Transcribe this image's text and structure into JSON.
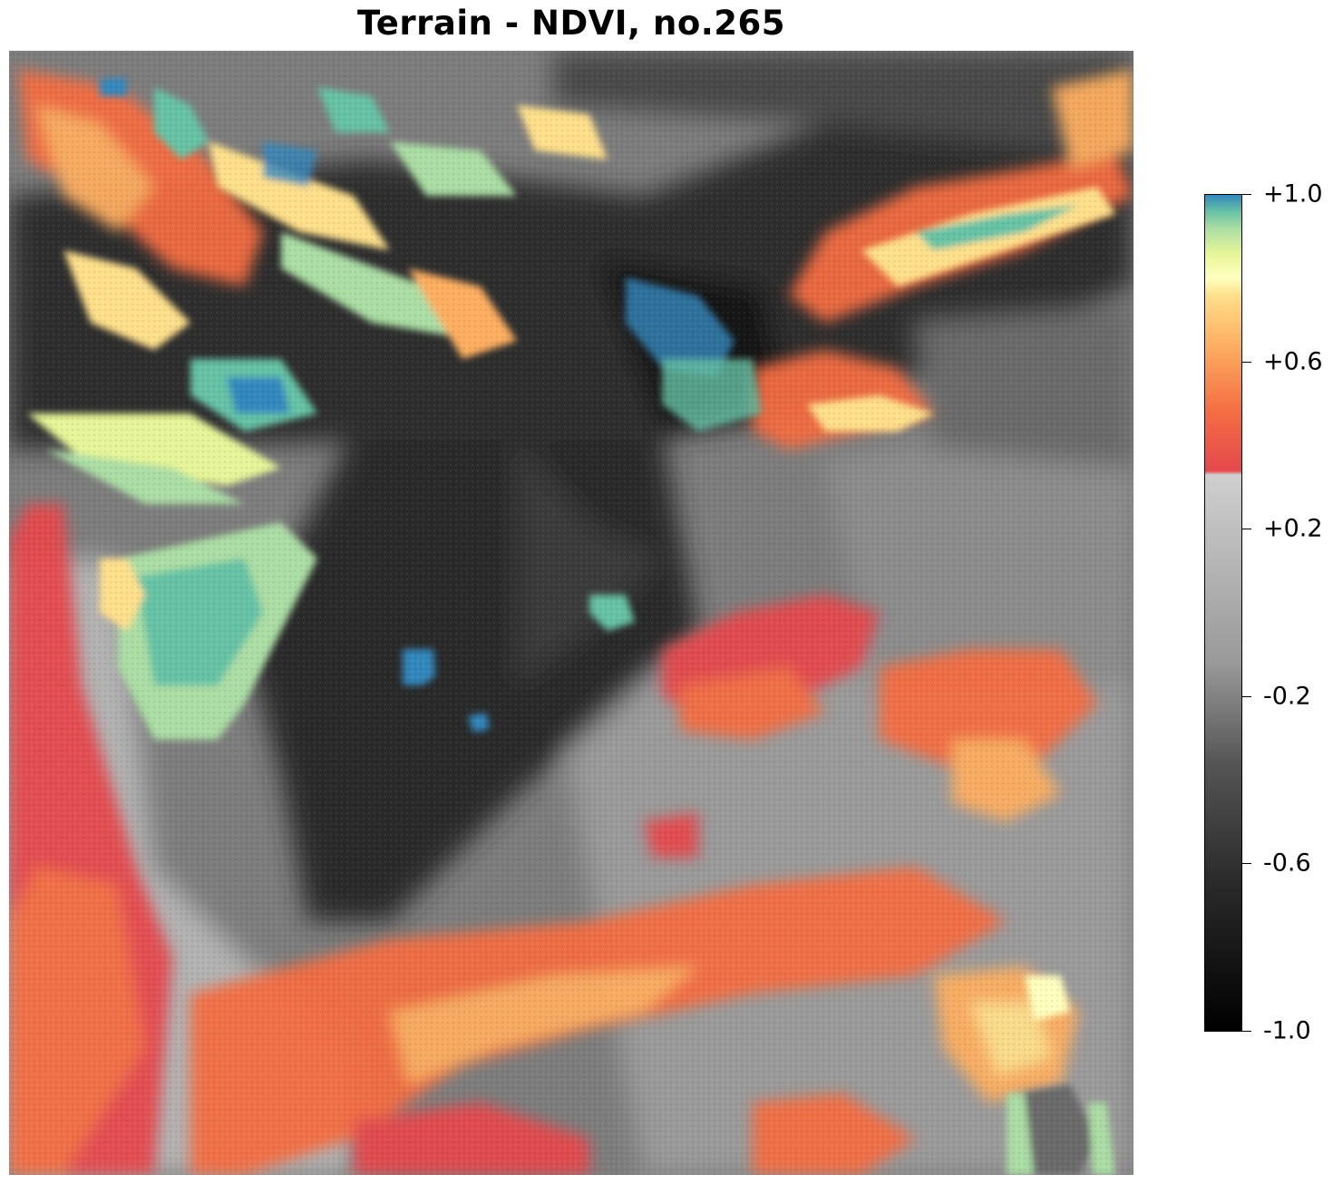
{
  "title": "Terrain - NDVI, no.265",
  "colorbar": {
    "min": -1.0,
    "max": 1.0,
    "colormap": "gray below -0.1, Spectral above",
    "ticks": [
      {
        "value": 1.0,
        "label": "+1.0"
      },
      {
        "value": 0.6,
        "label": "+0.6"
      },
      {
        "value": 0.2,
        "label": "+0.2"
      },
      {
        "value": -0.2,
        "label": "-0.2"
      },
      {
        "value": -0.6,
        "label": "-0.6"
      },
      {
        "value": -1.0,
        "label": "-1.0"
      }
    ]
  },
  "colors": {
    "dark": "#1c1c1c",
    "mid_gray": "#7a7a7a",
    "light_gray": "#b4b4b4",
    "red": "#e5484d",
    "orange": "#f46d43",
    "yellow": "#fee08b",
    "green": "#66c2a5",
    "blue": "#3288bd"
  }
}
